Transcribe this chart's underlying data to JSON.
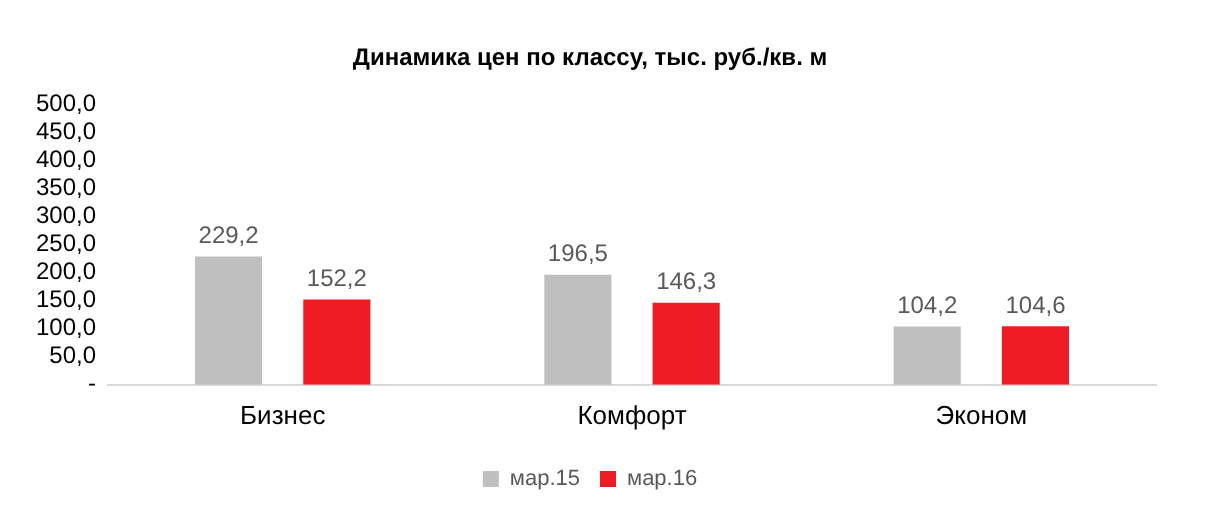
{
  "chart_data": {
    "type": "bar",
    "title": "Динамика цен по классу, тыс. руб./кв. м",
    "categories": [
      "Бизнес",
      "Комфорт",
      "Эконом"
    ],
    "series": [
      {
        "name": "мар.15",
        "color": "#bfbfbf",
        "values": [
          229.2,
          196.5,
          104.2
        ],
        "value_labels": [
          "229,2",
          "196,5",
          "104,2"
        ]
      },
      {
        "name": "мар.16",
        "color": "#ee1c25",
        "values": [
          152.2,
          146.3,
          104.6
        ],
        "value_labels": [
          "152,2",
          "146,3",
          "104,6"
        ]
      }
    ],
    "ylim": [
      0,
      500
    ],
    "yticks": [
      {
        "value": 0,
        "label": "-"
      },
      {
        "value": 50,
        "label": "50,0"
      },
      {
        "value": 100,
        "label": "100,0"
      },
      {
        "value": 150,
        "label": "150,0"
      },
      {
        "value": 200,
        "label": "200,0"
      },
      {
        "value": 250,
        "label": "250,0"
      },
      {
        "value": 300,
        "label": "300,0"
      },
      {
        "value": 350,
        "label": "350,0"
      },
      {
        "value": 400,
        "label": "400,0"
      },
      {
        "value": 450,
        "label": "450,0"
      },
      {
        "value": 500,
        "label": "500,0"
      }
    ],
    "grid": false,
    "legend": "bottom"
  }
}
